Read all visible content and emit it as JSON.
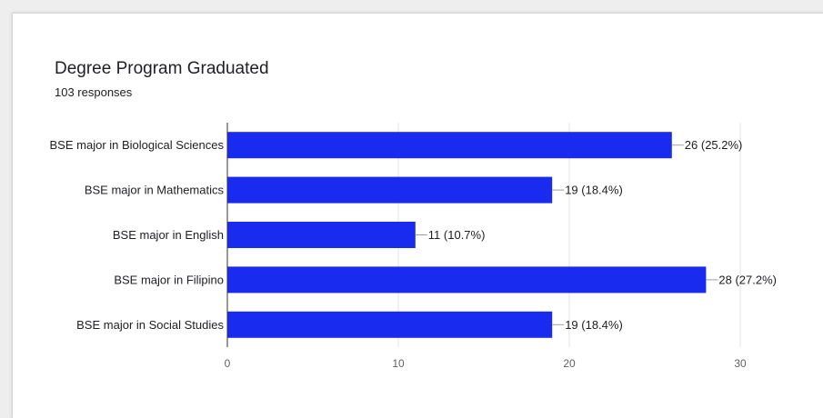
{
  "card": {
    "title": "Degree Program Graduated",
    "subtitle": "103 responses"
  },
  "chart_data": {
    "type": "bar",
    "orientation": "horizontal",
    "categories": [
      "BSE major in Biological Sciences",
      "BSE major in Mathematics",
      "BSE major in English",
      "BSE major in Filipino",
      "BSE major in Social Studies"
    ],
    "values": [
      26,
      19,
      11,
      28,
      19
    ],
    "data_labels": [
      "26 (25.2%)",
      "19 (18.4%)",
      "11 (10.7%)",
      "28 (27.2%)",
      "19 (18.4%)"
    ],
    "x_ticks": [
      0,
      10,
      20,
      30
    ],
    "xlim": [
      0,
      30
    ],
    "title": "Degree Program Graduated",
    "xlabel": "",
    "ylabel": "",
    "grid": true,
    "legend": "none",
    "bar_color": "#1a2bf0"
  }
}
